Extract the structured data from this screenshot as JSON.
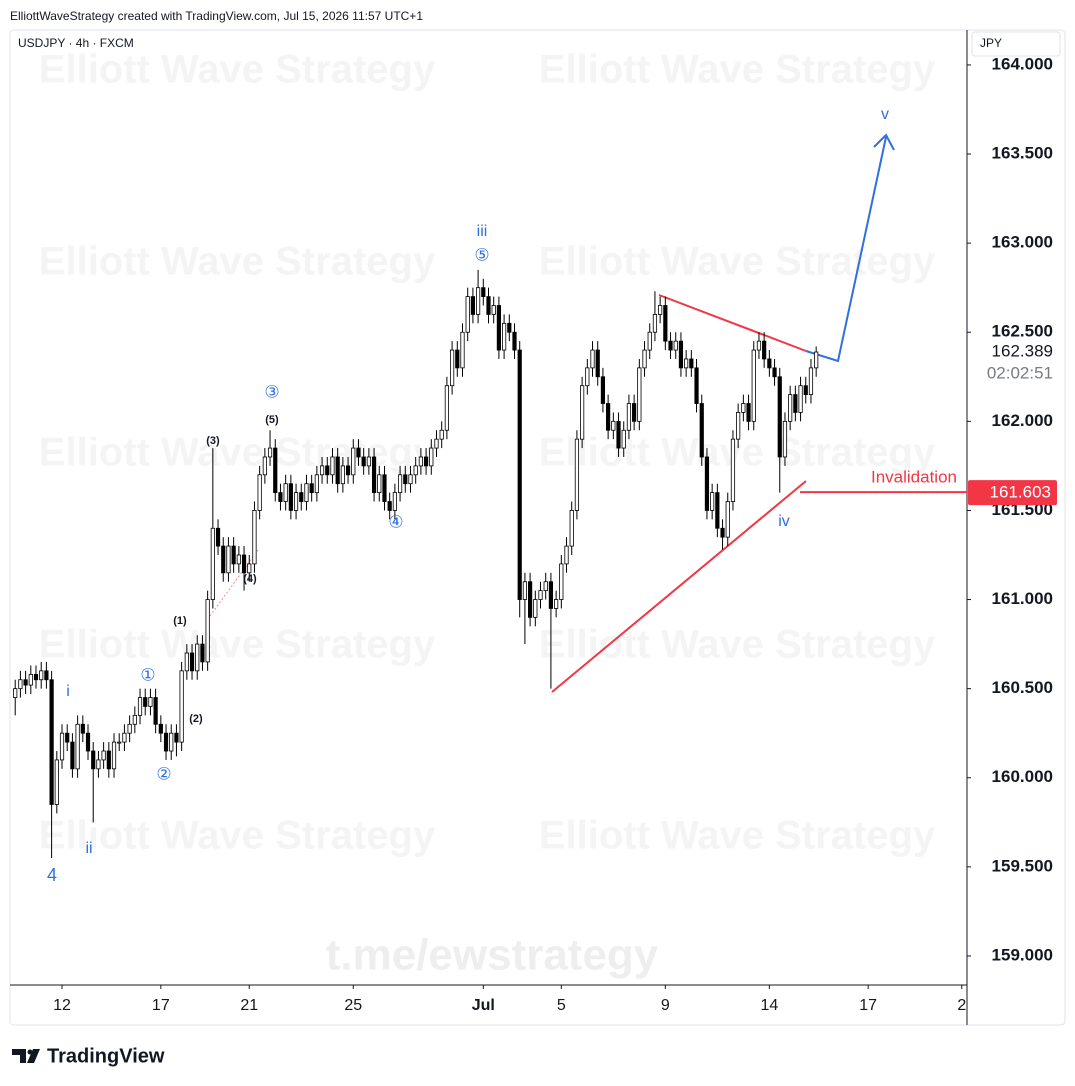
{
  "chart_data": {
    "type": "candlestick",
    "header": "ElliottWaveStrategy created with TradingView.com, Jul 15, 2026 11:57 UTC+1",
    "title": "USDJPY · 4h · FXCM",
    "currency": "JPY",
    "watermark": "Elliott Wave Strategy",
    "footer_watermark": "t.me/ewstrategy",
    "brand": "TradingView",
    "up_color": "#ffffff",
    "down_color": "#000000",
    "open": [
      160.45,
      160.5,
      160.55,
      160.52,
      160.58,
      160.55,
      160.6,
      160.55,
      159.85,
      160.1,
      160.25,
      160.2,
      160.05,
      160.3,
      160.25,
      160.15,
      160.05,
      160.1,
      160.15,
      160.05,
      160.2,
      160.2,
      160.25,
      160.3,
      160.35,
      160.45,
      160.4,
      160.45,
      160.3,
      160.25,
      160.15,
      160.25,
      160.2,
      160.6,
      160.7,
      160.6,
      160.75,
      160.65,
      161.0,
      161.4,
      161.3,
      161.15,
      161.3,
      161.2,
      161.25,
      161.15,
      161.2,
      161.5,
      161.7,
      161.8,
      161.85,
      161.6,
      161.55,
      161.65,
      161.5,
      161.6,
      161.55,
      161.65,
      161.6,
      161.7,
      161.75,
      161.7,
      161.8,
      161.65,
      161.75,
      161.7,
      161.85,
      161.8,
      161.75,
      161.8,
      161.6,
      161.7,
      161.55,
      161.5,
      161.6,
      161.7,
      161.65,
      161.7,
      161.75,
      161.8,
      161.75,
      161.85,
      161.9,
      161.95,
      162.2,
      162.4,
      162.3,
      162.5,
      162.7,
      162.6,
      162.75,
      162.7,
      162.6,
      162.65,
      162.4,
      162.55,
      162.5,
      162.4,
      161.0,
      161.1,
      160.9,
      161.0,
      161.05,
      161.1,
      160.95,
      161.0,
      161.2,
      161.3,
      161.5,
      161.9,
      162.2,
      162.3,
      162.4,
      162.25,
      162.1,
      161.95,
      162.0,
      161.85,
      161.95,
      162.1,
      162.0,
      162.3,
      162.4,
      162.5,
      162.6,
      162.65,
      162.45,
      162.4,
      162.45,
      162.3,
      162.35,
      162.3,
      162.1,
      161.8,
      161.5,
      161.6,
      161.4,
      161.35,
      161.55,
      161.9,
      162.05,
      162.1,
      162.0,
      162.4,
      162.45,
      162.35,
      162.3,
      162.25,
      161.8,
      162.0,
      162.15,
      162.05,
      162.2,
      162.15,
      162.3
    ],
    "high": [
      160.55,
      160.6,
      160.6,
      160.63,
      160.63,
      160.65,
      160.65,
      160.6,
      160.15,
      160.3,
      160.3,
      160.25,
      160.35,
      160.35,
      160.3,
      160.2,
      160.15,
      160.2,
      160.2,
      160.25,
      160.25,
      160.3,
      160.35,
      160.4,
      160.5,
      160.5,
      160.5,
      160.5,
      160.35,
      160.3,
      160.3,
      160.3,
      160.65,
      160.75,
      160.75,
      160.8,
      160.8,
      161.05,
      161.85,
      161.45,
      161.35,
      161.35,
      161.35,
      161.3,
      161.3,
      161.25,
      161.55,
      161.75,
      161.85,
      161.95,
      161.9,
      161.65,
      161.7,
      161.7,
      161.65,
      161.65,
      161.7,
      161.7,
      161.75,
      161.8,
      161.8,
      161.85,
      161.85,
      161.8,
      161.8,
      161.9,
      161.9,
      161.85,
      161.85,
      161.85,
      161.75,
      161.75,
      161.6,
      161.65,
      161.75,
      161.75,
      161.75,
      161.8,
      161.85,
      161.85,
      161.9,
      161.95,
      162.0,
      162.25,
      162.45,
      162.45,
      162.55,
      162.75,
      162.75,
      162.85,
      162.8,
      162.75,
      162.7,
      162.7,
      162.6,
      162.6,
      162.55,
      162.45,
      161.15,
      161.15,
      161.05,
      161.1,
      161.15,
      161.15,
      161.05,
      161.25,
      161.35,
      161.55,
      161.95,
      162.25,
      162.35,
      162.45,
      162.45,
      162.3,
      162.15,
      162.05,
      162.05,
      162.0,
      162.15,
      162.15,
      162.35,
      162.45,
      162.55,
      162.73,
      162.7,
      162.7,
      162.5,
      162.5,
      162.5,
      162.4,
      162.4,
      162.35,
      162.15,
      161.85,
      161.65,
      161.65,
      161.45,
      161.6,
      161.95,
      162.1,
      162.15,
      162.15,
      162.45,
      162.5,
      162.5,
      162.4,
      162.35,
      162.3,
      162.05,
      162.2,
      162.2,
      162.25,
      162.25,
      162.35,
      162.42
    ],
    "low": [
      160.35,
      160.45,
      160.47,
      160.47,
      160.5,
      160.5,
      160.5,
      159.55,
      159.8,
      160.05,
      160.15,
      160.0,
      160.0,
      160.2,
      160.1,
      159.75,
      160.0,
      160.05,
      160.0,
      160.0,
      160.15,
      160.15,
      160.2,
      160.25,
      160.3,
      160.35,
      160.35,
      160.25,
      160.2,
      160.1,
      160.1,
      160.12,
      160.15,
      160.55,
      160.55,
      160.55,
      160.6,
      160.6,
      160.95,
      161.25,
      161.1,
      161.1,
      161.15,
      161.15,
      161.05,
      161.1,
      161.15,
      161.45,
      161.65,
      161.75,
      161.55,
      161.5,
      161.5,
      161.45,
      161.45,
      161.5,
      161.5,
      161.55,
      161.55,
      161.65,
      161.65,
      161.65,
      161.6,
      161.6,
      161.65,
      161.65,
      161.75,
      161.7,
      161.7,
      161.55,
      161.55,
      161.5,
      161.45,
      161.45,
      161.55,
      161.6,
      161.6,
      161.65,
      161.7,
      161.7,
      161.7,
      161.8,
      161.85,
      161.9,
      162.15,
      162.25,
      162.25,
      162.45,
      162.55,
      162.55,
      162.65,
      162.55,
      162.55,
      162.35,
      162.35,
      162.45,
      162.35,
      160.9,
      160.75,
      160.85,
      160.85,
      160.95,
      161.0,
      160.5,
      160.9,
      160.95,
      161.15,
      161.25,
      161.45,
      161.85,
      162.15,
      162.25,
      162.2,
      162.05,
      161.9,
      161.9,
      161.8,
      161.8,
      161.9,
      161.95,
      161.95,
      162.25,
      162.35,
      162.45,
      162.55,
      162.4,
      162.35,
      162.35,
      162.25,
      162.25,
      162.25,
      162.05,
      161.75,
      161.45,
      161.45,
      161.35,
      161.28,
      161.3,
      161.5,
      161.85,
      162.0,
      161.95,
      161.95,
      162.35,
      162.3,
      162.25,
      162.2,
      161.6,
      161.75,
      161.95,
      162.0,
      162.0,
      162.1,
      162.1,
      162.25
    ],
    "close": [
      160.5,
      160.55,
      160.52,
      160.58,
      160.55,
      160.6,
      160.55,
      159.85,
      160.1,
      160.25,
      160.2,
      160.05,
      160.3,
      160.25,
      160.15,
      160.05,
      160.1,
      160.15,
      160.05,
      160.2,
      160.2,
      160.25,
      160.3,
      160.35,
      160.45,
      160.4,
      160.45,
      160.3,
      160.25,
      160.15,
      160.25,
      160.2,
      160.6,
      160.7,
      160.6,
      160.75,
      160.65,
      161.0,
      161.4,
      161.3,
      161.15,
      161.3,
      161.2,
      161.25,
      161.15,
      161.2,
      161.5,
      161.7,
      161.8,
      161.85,
      161.6,
      161.55,
      161.65,
      161.5,
      161.6,
      161.55,
      161.65,
      161.6,
      161.7,
      161.75,
      161.7,
      161.8,
      161.65,
      161.75,
      161.7,
      161.85,
      161.8,
      161.75,
      161.8,
      161.6,
      161.7,
      161.55,
      161.5,
      161.6,
      161.7,
      161.65,
      161.7,
      161.75,
      161.8,
      161.75,
      161.85,
      161.9,
      161.95,
      162.2,
      162.4,
      162.3,
      162.5,
      162.7,
      162.6,
      162.75,
      162.7,
      162.6,
      162.65,
      162.4,
      162.55,
      162.5,
      162.4,
      161.0,
      161.1,
      160.9,
      161.0,
      161.05,
      161.1,
      160.95,
      161.0,
      161.2,
      161.3,
      161.5,
      161.9,
      162.2,
      162.3,
      162.4,
      162.25,
      162.1,
      161.95,
      162.0,
      161.85,
      161.95,
      162.1,
      162.0,
      162.3,
      162.4,
      162.5,
      162.6,
      162.65,
      162.45,
      162.4,
      162.45,
      162.3,
      162.35,
      162.3,
      162.1,
      161.8,
      161.5,
      161.6,
      161.4,
      161.35,
      161.55,
      161.9,
      162.05,
      162.1,
      162.0,
      162.4,
      162.45,
      162.35,
      162.3,
      162.25,
      161.8,
      162.0,
      162.15,
      162.05,
      162.2,
      162.15,
      162.3,
      162.389
    ],
    "xlim": [
      -1,
      183
    ],
    "xticks": [
      {
        "value": 9,
        "label": "12"
      },
      {
        "value": 28,
        "label": "17"
      },
      {
        "value": 45,
        "label": "21"
      },
      {
        "value": 65,
        "label": "25"
      },
      {
        "value": 90,
        "label": "Jul"
      },
      {
        "value": 105,
        "label": "5"
      },
      {
        "value": 125,
        "label": "9"
      },
      {
        "value": 145,
        "label": "14"
      },
      {
        "value": 164,
        "label": "17"
      },
      {
        "value": 182,
        "label": "2"
      }
    ],
    "ylim": [
      158.837,
      164.196
    ],
    "yticks": [
      {
        "value": 159,
        "label": "159.000"
      },
      {
        "value": 159.5,
        "label": "159.500"
      },
      {
        "value": 160,
        "label": "160.000"
      },
      {
        "value": 160.5,
        "label": "160.500"
      },
      {
        "value": 161,
        "label": "161.000"
      },
      {
        "value": 161.5,
        "label": "161.500"
      },
      {
        "value": 162,
        "label": "162.000"
      },
      {
        "value": 162.5,
        "label": "162.500"
      },
      {
        "value": 163,
        "label": "163.000"
      },
      {
        "value": 163.5,
        "label": "163.500"
      },
      {
        "value": 164,
        "label": "164.000"
      }
    ],
    "last_price": 162.389,
    "countdown": "02:02:51",
    "invalidation": {
      "label": "Invalidation",
      "value": 161.603,
      "color": "#f23645"
    },
    "annotations": [
      {
        "text": "4",
        "color": "#2f6fdf"
      },
      {
        "text": "i",
        "color": "#2f6fdf"
      },
      {
        "text": "ii",
        "color": "#2f6fdf"
      },
      {
        "text": "①",
        "color": "#2f6fdf"
      },
      {
        "text": "②",
        "color": "#2f6fdf"
      },
      {
        "text": "(1)",
        "color": "#131722"
      },
      {
        "text": "(2)",
        "color": "#131722"
      },
      {
        "text": "(3)",
        "color": "#131722"
      },
      {
        "text": "(4)",
        "color": "#131722"
      },
      {
        "text": "(5)",
        "color": "#131722"
      },
      {
        "text": "③",
        "color": "#2f6fdf"
      },
      {
        "text": "④",
        "color": "#2f6fdf"
      },
      {
        "text": "⑤",
        "color": "#2f6fdf"
      },
      {
        "text": "iii",
        "color": "#2f6fdf"
      },
      {
        "text": "iv",
        "color": "#2f6fdf"
      },
      {
        "text": "v",
        "color": "#2f6fdf"
      }
    ]
  }
}
